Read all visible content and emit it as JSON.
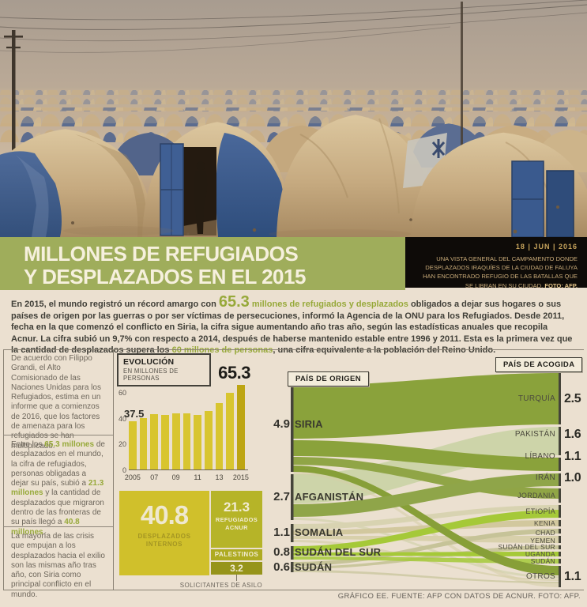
{
  "title": {
    "line1": "MILLONES DE REFUGIADOS",
    "line2": "Y DESPLAZADOS EN EL 2015"
  },
  "caption": {
    "date": "18 | JUN | 2016",
    "text": "UNA VISTA GENERAL DEL CAMPAMENTO DONDE DESPLAZADOS IRAQUÍES DE LA CIUDAD DE FALUYA HAN ENCONTRADO REFUGIO DE LAS BATALLAS QUE SE LIBRAN EN SU CIUDAD.",
    "credit": "FOTO: AFP."
  },
  "intro": {
    "segments": [
      {
        "t": "En 2015, el mundo registró un récord amargo con "
      },
      {
        "t": "65.3",
        "hl": "big"
      },
      {
        "t": " millones de refugiados y desplazados ",
        "hl": true
      },
      {
        "t": "obligados a dejar sus hogares o sus países de origen por las guerras o por ser víctimas de persecuciones, informó la Agencia de la ONU para los Refugiados. Desde 2011, fecha en la que comenzó el conflicto en Siria, la cifra sigue aumentando año tras año, según las estadísticas anuales que recopila Acnur. La cifra subió un 9,7% con respecto a 2014, después de haberse mantenido estable entre 1996 y 2011. Esta es la primera vez que la cantidad de desplazados supera los "
      },
      {
        "t": "60 millones de personas",
        "hl": true
      },
      {
        "t": ", una cifra equivalente a la población del Reino Unido."
      }
    ]
  },
  "sidebar": {
    "paragraphs": [
      {
        "segments": [
          {
            "t": "De acuerdo con Filippo Grandi, el Alto Comisionado de las Naciones Unidas para los Refugiados, estima en un informe que a comienzos de 2016, que los factores de amenaza para los refugiados se han multiplicado."
          }
        ]
      },
      {
        "segments": [
          {
            "t": "Entre los "
          },
          {
            "t": "65.3 millones",
            "hl": true
          },
          {
            "t": " de desplazados en el mundo, la cifra de refugiados, personas obligadas a dejar su país, subió a "
          },
          {
            "t": "21.3 millones",
            "hl": true
          },
          {
            "t": " y la cantidad de desplazados que migraron dentro de las fronteras de su país llegó a "
          },
          {
            "t": "40.8 millones",
            "hl": true
          },
          {
            "t": "."
          }
        ]
      },
      {
        "segments": [
          {
            "t": "La mayoría de las crisis que empujan a los desplazados hacia el exilio son las mismas año tras año, con Siria como principal conflicto en el mundo."
          }
        ]
      }
    ]
  },
  "chart_data": [
    {
      "type": "bar",
      "title": "EVOLUCIÓN",
      "subtitle": "EN MILLONES DE PERSONAS",
      "categories": [
        "2005",
        "2006",
        "2007",
        "2008",
        "2009",
        "2010",
        "2011",
        "2012",
        "2013",
        "2014",
        "2015"
      ],
      "values": [
        37.5,
        39.5,
        42.7,
        42.0,
        43.3,
        43.7,
        42.5,
        45.2,
        51.2,
        59.5,
        65.3
      ],
      "yticks": [
        0,
        20,
        40,
        60
      ],
      "xtick_labels": [
        "2005",
        "07",
        "09",
        "11",
        "13",
        "2015"
      ],
      "xtick_indices": [
        0,
        2,
        4,
        6,
        8,
        10
      ],
      "annotated_indices": [
        0,
        10
      ],
      "ylim": [
        0,
        70
      ],
      "grid": false
    },
    {
      "type": "sankey",
      "origin_header": "PAÍS DE ORIGEN",
      "dest_header": "PAÍS DE ACOGIDA",
      "unit": "millones de personas",
      "origins": [
        {
          "name": "SIRIA",
          "value": 4.9,
          "label": "4.9"
        },
        {
          "name": "AFGANISTÁN",
          "value": 2.7,
          "label": "2.7"
        },
        {
          "name": "SOMALIA",
          "value": 1.1,
          "label": "1.1"
        },
        {
          "name": "SUDÁN DEL SUR",
          "value": 0.8,
          "label": "0.8"
        },
        {
          "name": "SUDÁN",
          "value": 0.6,
          "label": "0.6"
        }
      ],
      "destinations": [
        {
          "name": "TURQUÍA",
          "value": 2.5,
          "label": "2.5"
        },
        {
          "name": "PAKISTÁN",
          "value": 1.6,
          "label": "1.6"
        },
        {
          "name": "LÍBANO",
          "value": 1.1,
          "label": "1.1"
        },
        {
          "name": "IRÁN",
          "value": 1.0,
          "label": "1.0"
        },
        {
          "name": "JORDANIA",
          "value": null,
          "label": ""
        },
        {
          "name": "ETIOPÍA",
          "value": null,
          "label": ""
        },
        {
          "name": "KENIA",
          "value": null,
          "label": ""
        },
        {
          "name": "CHAD",
          "value": null,
          "label": ""
        },
        {
          "name": "YEMEN",
          "value": null,
          "label": ""
        },
        {
          "name": "SUDÁN DEL SUR",
          "value": null,
          "label": ""
        },
        {
          "name": "UGANDA",
          "value": null,
          "label": ""
        },
        {
          "name": "SUDÁN",
          "value": null,
          "label": ""
        },
        {
          "name": "OTROS",
          "value": 1.1,
          "label": "1.1"
        }
      ]
    },
    {
      "type": "treemap",
      "items": [
        {
          "label": "DESPLAZADOS INTERNOS",
          "value": "40.8"
        },
        {
          "label": "REFUGIADOS ACNUR",
          "value": "21.3"
        },
        {
          "label": "PALESTINOS",
          "value": ""
        },
        {
          "label": "SOLICITANTES DE ASILO",
          "value": "3.2"
        }
      ]
    }
  ],
  "footer": {
    "text": "GRÁFICO EE. FUENTE: AFP CON DATOS DE ACNUR. FOTO: AFP."
  },
  "colors": {
    "background": "#ebe0d0",
    "band_green": "#9fad5b",
    "accent_green": "#97a93a",
    "bar_yellow": "#d8c52f",
    "bar_highlight": "#bda513",
    "treemap_yellow": "#d0c02b",
    "treemap_olive": "#b6b428",
    "treemap_dark_olive": "#96941a",
    "flow_siria": "#8aa23b",
    "flow_afganistan": "#cdd4a9",
    "flow_sudan_del_sur": "#a5c938",
    "caption_bg": "#0e0b08",
    "caption_gold": "#c7a45c"
  }
}
